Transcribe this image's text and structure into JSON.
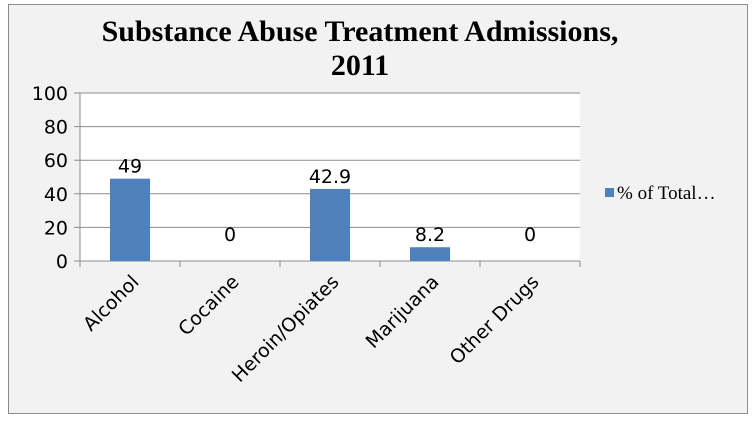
{
  "chart_data": {
    "type": "bar",
    "title_lines": [
      "Substance Abuse Treatment Admissions,",
      "2011"
    ],
    "categories": [
      "Alcohol",
      "Cocaine",
      "Heroin/Opiates",
      "Marijuana",
      "Other Drugs"
    ],
    "series": [
      {
        "name": "% of Total…",
        "values": [
          49,
          0,
          42.9,
          8.2,
          0
        ],
        "color": "#4f81bd"
      }
    ],
    "data_labels": [
      "49",
      "0",
      "42.9",
      "8.2",
      "0"
    ],
    "y_ticks": [
      "0",
      "20",
      "40",
      "60",
      "80",
      "100"
    ],
    "ylim": [
      0,
      100
    ],
    "grid": true,
    "legend_position": "right"
  }
}
